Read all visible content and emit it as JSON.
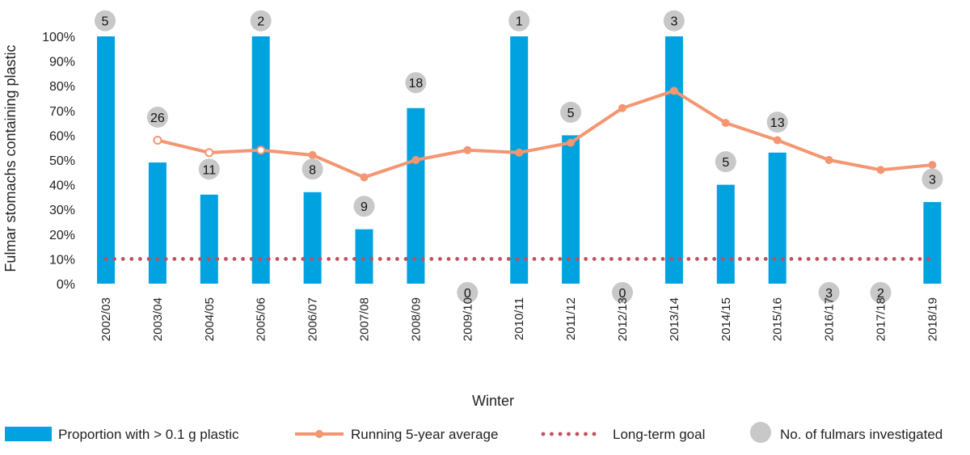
{
  "chart_data": {
    "type": "bar",
    "title": "",
    "xlabel": "Winter",
    "ylabel": "Fulmar stomachs containing plastic",
    "ylim": [
      0,
      100
    ],
    "yticks": [
      0,
      10,
      20,
      30,
      40,
      50,
      60,
      70,
      80,
      90,
      100
    ],
    "ytick_labels": [
      "0%",
      "10%",
      "20%",
      "30%",
      "40%",
      "50%",
      "60%",
      "70%",
      "80%",
      "90%",
      "100%"
    ],
    "categories": [
      "2002/03",
      "2003/04",
      "2004/05",
      "2005/06",
      "2006/07",
      "2007/08",
      "2008/09",
      "2009/10",
      "2010/11",
      "2011/12",
      "2012/13",
      "2013/14",
      "2014/15",
      "2015/16",
      "2016/17",
      "2017/18",
      "2018/19"
    ],
    "grid": false,
    "legend_position": "bottom",
    "series": [
      {
        "name": "Proportion with > 0.1 g plastic",
        "type": "bar",
        "color": "#00a3e0",
        "values": [
          100,
          49,
          36,
          100,
          37,
          22,
          71,
          0,
          100,
          60,
          0,
          100,
          40,
          53,
          0,
          0,
          33
        ]
      },
      {
        "name": "Running 5-year average",
        "type": "line",
        "color": "#f39671",
        "values": [
          null,
          58,
          53,
          54,
          52,
          43,
          50,
          54,
          53,
          57,
          71,
          78,
          65,
          58,
          50,
          46,
          48
        ],
        "hollow_points": [
          1,
          2,
          3
        ]
      },
      {
        "name": "Long-term goal",
        "type": "line",
        "style": "dotted",
        "color": "#c0505f",
        "values": [
          10,
          10,
          10,
          10,
          10,
          10,
          10,
          10,
          10,
          10,
          10,
          10,
          10,
          10,
          10,
          10,
          10
        ]
      },
      {
        "name": "No. of fulmars investigated",
        "type": "label",
        "color": "#c8c8c8",
        "values": [
          5,
          26,
          11,
          2,
          8,
          9,
          18,
          0,
          1,
          5,
          0,
          3,
          5,
          13,
          3,
          2,
          3
        ],
        "positions": [
          105,
          66,
          45,
          105,
          45,
          30,
          80,
          -1,
          105,
          68,
          -1,
          105,
          48,
          64,
          -1,
          -1,
          41
        ]
      }
    ]
  }
}
